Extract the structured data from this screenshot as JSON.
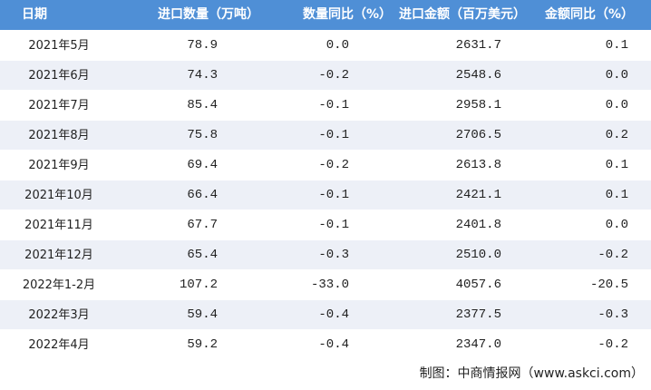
{
  "header": {
    "columns": [
      "日期",
      "进口数量（万吨）",
      "数量同比（%）",
      "进口金额（百万美元）",
      "金额同比（%）"
    ]
  },
  "table": {
    "rows": [
      [
        "2021年5月",
        "78.9",
        "0.0",
        "2631.7",
        "0.1"
      ],
      [
        "2021年6月",
        "74.3",
        "-0.2",
        "2548.6",
        "0.0"
      ],
      [
        "2021年7月",
        "85.4",
        "-0.1",
        "2958.1",
        "0.0"
      ],
      [
        "2021年8月",
        "75.8",
        "-0.1",
        "2706.5",
        "0.2"
      ],
      [
        "2021年9月",
        "69.4",
        "-0.2",
        "2613.8",
        "0.1"
      ],
      [
        "2021年10月",
        "66.4",
        "-0.1",
        "2421.1",
        "0.1"
      ],
      [
        "2021年11月",
        "67.7",
        "-0.1",
        "2401.8",
        "0.0"
      ],
      [
        "2021年12月",
        "65.4",
        "-0.3",
        "2510.0",
        "-0.2"
      ],
      [
        "2022年1-2月",
        "107.2",
        "-33.0",
        "4057.6",
        "-20.5"
      ],
      [
        "2022年3月",
        "59.4",
        "-0.4",
        "2377.5",
        "-0.3"
      ],
      [
        "2022年4月",
        "59.2",
        "-0.4",
        "2347.0",
        "-0.2"
      ]
    ]
  },
  "footer": {
    "source": "制图：中商情报网（www.askci.com）"
  }
}
